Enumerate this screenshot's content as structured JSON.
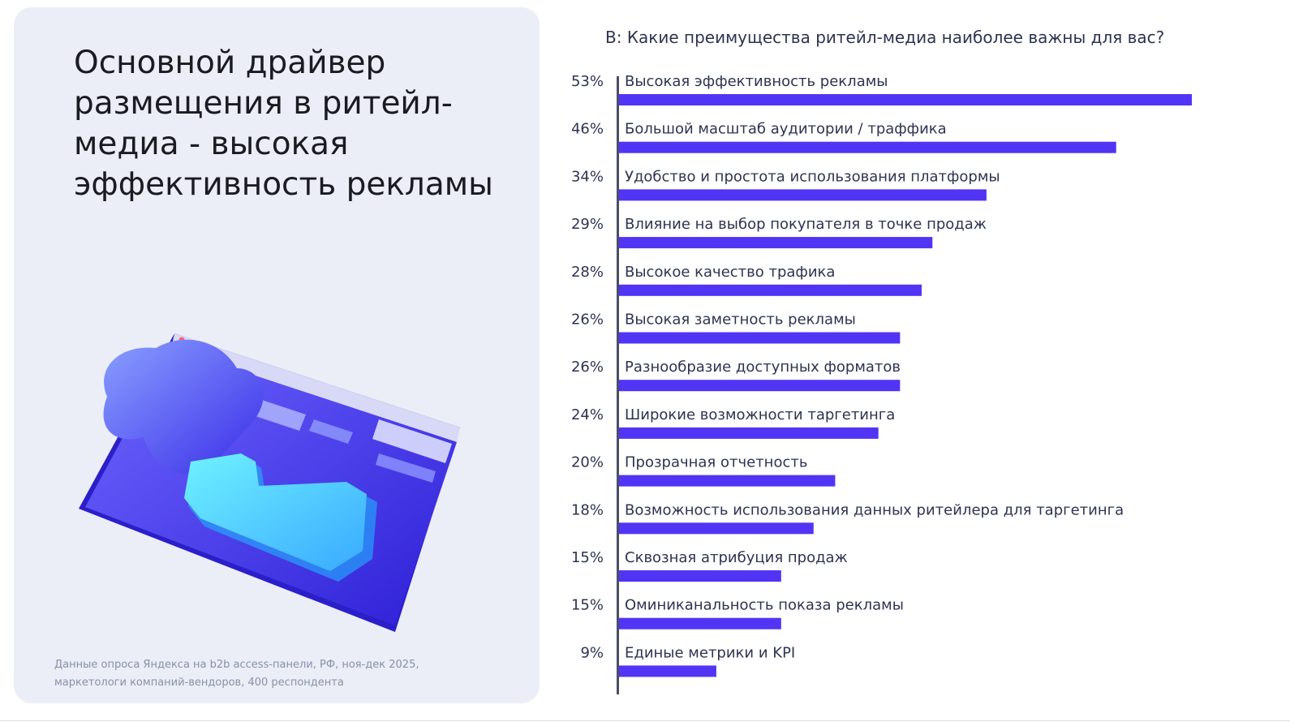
{
  "headline": "Основной драйвер размещения в ритейл-медиа - высокая эффективность рекламы",
  "source": {
    "line1": "Данные опроса Яндекса  на b2b access-панели, РФ, ноя-дек 2025,",
    "line2": "маркетологи компаний-вендоров, 400 респондента"
  },
  "colors": {
    "bar": "#5234f5",
    "axis": "#4a4f66",
    "panel": "#ebeef6"
  },
  "chart_data": {
    "type": "bar",
    "orientation": "horizontal",
    "title": "В: Какие преимущества ритейл-медиа наиболее важны для вас?",
    "value_suffix": "%",
    "categories": [
      "Высокая эффективность рекламы",
      "Большой масштаб аудитории / траффика",
      "Удобство и простота использования платформы",
      "Влияние на выбор покупателя в точке продаж",
      "Высокое качество трафика",
      "Высокая заметность рекламы",
      "Разнообразие доступных форматов",
      "Широкие возможности таргетинга",
      "Прозрачная отчетность",
      "Возможность использования данных ритейлера для таргетинга",
      "Сквозная атрибуция продаж",
      "Оминиканальность показа рекламы",
      "Единые метрики и KPI"
    ],
    "values": [
      53,
      46,
      34,
      29,
      28,
      26,
      26,
      24,
      20,
      18,
      15,
      15,
      9
    ],
    "labels": [
      "53%",
      "46%",
      "34%",
      "29%",
      "28%",
      "26%",
      "26%",
      "24%",
      "20%",
      "18%",
      "15%",
      "15%",
      "9%"
    ],
    "xlim": [
      0,
      53
    ],
    "grid": false,
    "legend": false
  }
}
